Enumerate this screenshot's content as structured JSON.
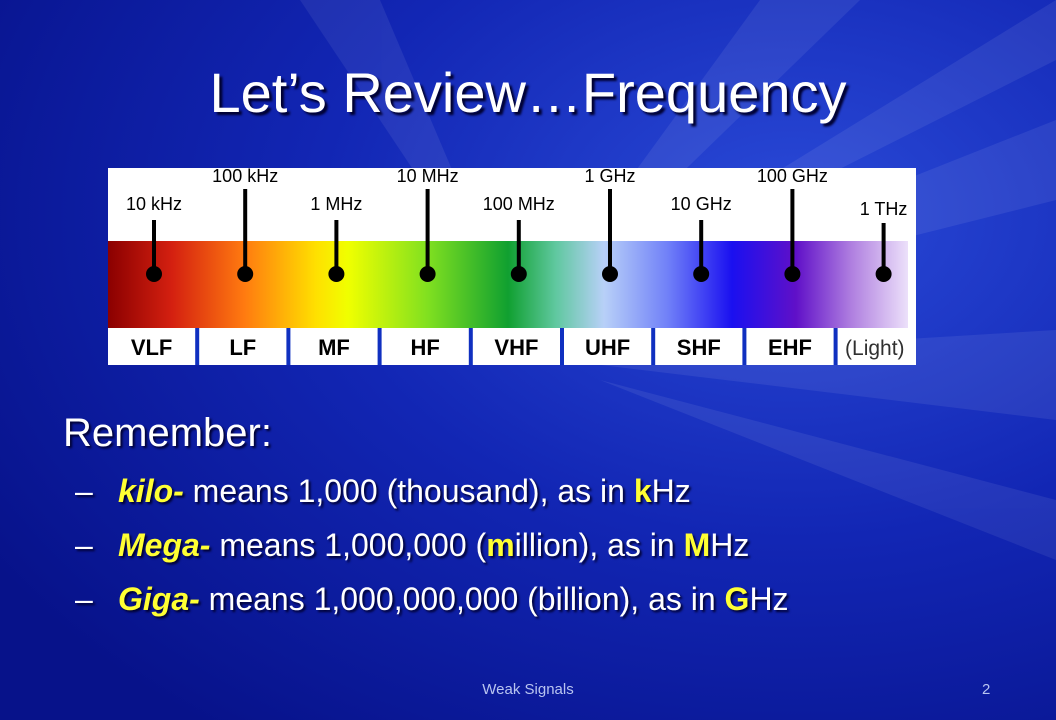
{
  "slide": {
    "title": "Let’s Review…Frequency",
    "footer": "Weak Signals",
    "page_number": "2"
  },
  "spectrum": {
    "markers": [
      "10 kHz",
      "100 kHz",
      "1 MHz",
      "10 MHz",
      "100 MHz",
      "1 GHz",
      "10 GHz",
      "100 GHz",
      "1 THz"
    ],
    "bands": [
      "VLF",
      "LF",
      "MF",
      "HF",
      "VHF",
      "UHF",
      "SHF",
      "EHF",
      "(Light)"
    ]
  },
  "remember": {
    "heading": "Remember:",
    "items": [
      {
        "dash": "–",
        "prefix": "kilo-",
        "text1": " means 1,000 (thousand), as in ",
        "hl_pre": "",
        "hl": "k",
        "after_hl": "Hz",
        "mid": "",
        "hl2": "",
        "text2": ""
      },
      {
        "dash": "–",
        "prefix": "Mega-",
        "text1": " means 1,000,000 (",
        "hl_pre": "",
        "hl": "m",
        "after_hl": "illion), as in ",
        "mid": "",
        "hl2": "M",
        "text2": "Hz"
      },
      {
        "dash": "–",
        "prefix": "Giga-",
        "text1": " means 1,000,000,000 (billion), as in ",
        "hl_pre": "",
        "hl": "G",
        "after_hl": "Hz",
        "mid": "",
        "hl2": "",
        "text2": ""
      }
    ]
  },
  "colors": {
    "accent": "#ffff33",
    "background": "#0a1a9a"
  }
}
